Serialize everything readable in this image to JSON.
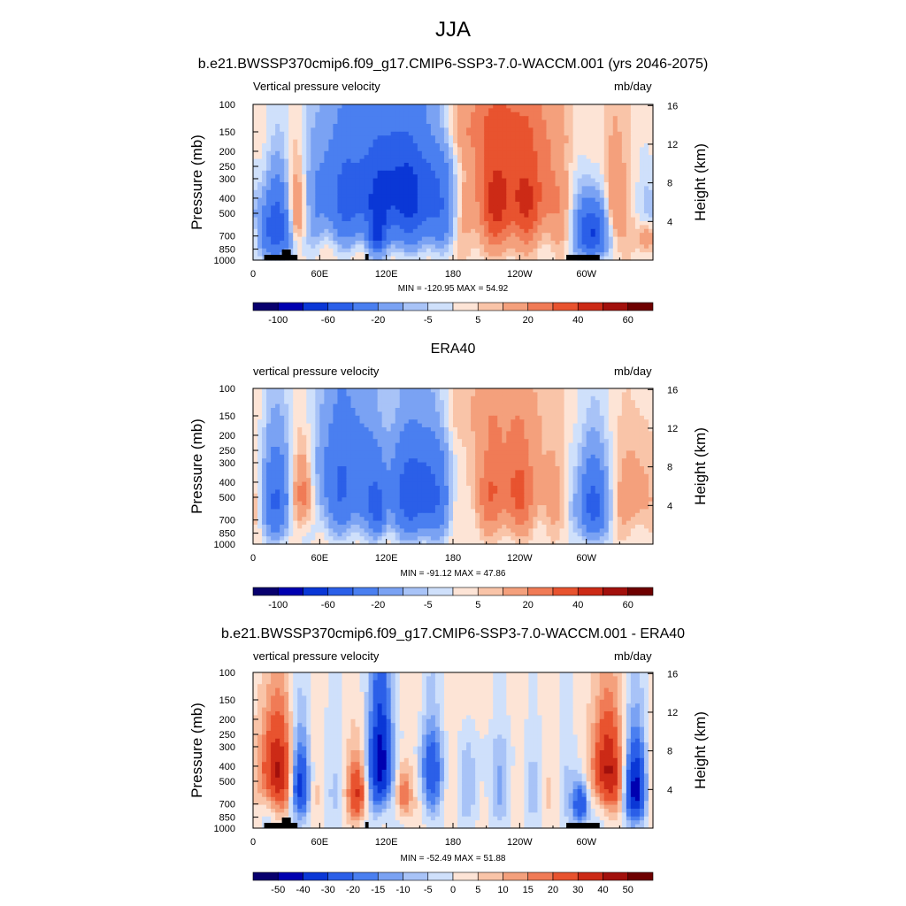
{
  "figure": {
    "title": "JJA",
    "run_title": "b.e21.BWSSP370cmip6.f09_g17.CMIP6-SSP3-7.0-WACCM.001 (yrs 2046-2075)"
  },
  "colors": {
    "mask": "#000000",
    "abs_palette": [
      "#08006e",
      "#0000b0",
      "#0a37d6",
      "#2b5fe8",
      "#4a7ff0",
      "#7aa2f3",
      "#a8c3f7",
      "#cfe0fb",
      "#fde4d6",
      "#f9c4a8",
      "#f4a07c",
      "#f07b56",
      "#e8532f",
      "#cc2a16",
      "#a2100c",
      "#6e0000"
    ],
    "diff_palette": [
      "#08006e",
      "#0000b0",
      "#0a37d6",
      "#2b5fe8",
      "#4a7ff0",
      "#7aa2f3",
      "#a8c3f7",
      "#cfe0fb",
      "#fde4d6",
      "#f9c4a8",
      "#f4a07c",
      "#f07b56",
      "#e8532f",
      "#cc2a16",
      "#a2100c",
      "#6e0000"
    ]
  },
  "chart_data": [
    {
      "type": "heatmap",
      "panel_title": "",
      "var_label": "Vertical pressure velocity",
      "unit_label": "mb/day",
      "ylabel": "Pressure (mb)",
      "ylabel_right": "Height (km)",
      "x_ticks": [
        "0",
        "60E",
        "120E",
        "180",
        "120W",
        "60W"
      ],
      "x_tick_lon": [
        0,
        60,
        120,
        180,
        240,
        300
      ],
      "xlim": [
        0,
        360
      ],
      "y_ticks": [
        "100",
        "150",
        "200",
        "250",
        "300",
        "400",
        "500",
        "700",
        "850",
        "1000"
      ],
      "y_tick_values": [
        100,
        150,
        200,
        250,
        300,
        400,
        500,
        700,
        850,
        1000
      ],
      "ylim": [
        1000,
        100
      ],
      "y_right_ticks": [
        "16",
        "12",
        "8",
        "4"
      ],
      "y_right_values": [
        16,
        12,
        8,
        4
      ],
      "minmax_text": "MIN = -120.95  MAX =  54.92",
      "min": -120.95,
      "max": 54.92,
      "colorbar_labels": [
        "-100",
        "-60",
        "-20",
        "-5",
        "5",
        "20",
        "40",
        "60"
      ],
      "colorbar_label_slots": [
        1,
        3,
        5,
        7,
        9,
        11,
        13,
        15
      ],
      "show_mask": true,
      "field": [
        {
          "lon": 18,
          "p": 620,
          "a": -55,
          "wl": 14,
          "wp": 360
        },
        {
          "lon": 40,
          "p": 480,
          "a": 32,
          "wl": 7,
          "wp": 300
        },
        {
          "lon": 8,
          "p": 520,
          "a": 8,
          "wl": 8,
          "wp": 400
        },
        {
          "lon": 90,
          "p": 380,
          "a": -48,
          "wl": 28,
          "wp": 380
        },
        {
          "lon": 135,
          "p": 360,
          "a": -55,
          "wl": 20,
          "wp": 420
        },
        {
          "lon": 165,
          "p": 440,
          "a": -30,
          "wl": 14,
          "wp": 380
        },
        {
          "lon": 112,
          "p": 700,
          "a": -40,
          "wl": 5,
          "wp": 230
        },
        {
          "lon": 225,
          "p": 400,
          "a": 40,
          "wl": 22,
          "wp": 420
        },
        {
          "lon": 260,
          "p": 380,
          "a": 18,
          "wl": 14,
          "wp": 340
        },
        {
          "lon": 305,
          "p": 660,
          "a": -70,
          "wl": 9,
          "wp": 300
        },
        {
          "lon": 325,
          "p": 440,
          "a": 22,
          "wl": 6,
          "wp": 340
        },
        {
          "lon": 355,
          "p": 720,
          "a": 30,
          "wl": 6,
          "wp": 200
        },
        {
          "lon": 180,
          "p": 140,
          "a": 10,
          "wl": 60,
          "wp": 80
        }
      ],
      "base": 3
    },
    {
      "type": "heatmap",
      "panel_title": "ERA40",
      "var_label": "vertical pressure velocity",
      "unit_label": "mb/day",
      "ylabel": "Pressure (mb)",
      "ylabel_right": "Height (km)",
      "x_ticks": [
        "0",
        "60E",
        "120E",
        "180",
        "120W",
        "60W"
      ],
      "x_tick_lon": [
        0,
        60,
        120,
        180,
        240,
        300
      ],
      "xlim": [
        0,
        360
      ],
      "y_ticks": [
        "100",
        "150",
        "200",
        "250",
        "300",
        "400",
        "500",
        "700",
        "850",
        "1000"
      ],
      "y_tick_values": [
        100,
        150,
        200,
        250,
        300,
        400,
        500,
        700,
        850,
        1000
      ],
      "ylim": [
        1000,
        100
      ],
      "y_right_ticks": [
        "16",
        "12",
        "8",
        "4"
      ],
      "y_right_values": [
        16,
        12,
        8,
        4
      ],
      "minmax_text": "MIN = -91.12  MAX =  47.86",
      "min": -91.12,
      "max": 47.86,
      "colorbar_labels": [
        "-100",
        "-60",
        "-20",
        "-5",
        "5",
        "20",
        "40",
        "60"
      ],
      "colorbar_label_slots": [
        1,
        3,
        5,
        7,
        9,
        11,
        13,
        15
      ],
      "show_mask": false,
      "field": [
        {
          "lon": 22,
          "p": 520,
          "a": -40,
          "wl": 10,
          "wp": 380
        },
        {
          "lon": 45,
          "p": 480,
          "a": 36,
          "wl": 7,
          "wp": 300
        },
        {
          "lon": 85,
          "p": 400,
          "a": -42,
          "wl": 22,
          "wp": 420
        },
        {
          "lon": 150,
          "p": 480,
          "a": -58,
          "wl": 18,
          "wp": 400
        },
        {
          "lon": 112,
          "p": 620,
          "a": -30,
          "wl": 5,
          "wp": 260
        },
        {
          "lon": 230,
          "p": 450,
          "a": 30,
          "wl": 24,
          "wp": 380
        },
        {
          "lon": 305,
          "p": 560,
          "a": -55,
          "wl": 8,
          "wp": 360
        },
        {
          "lon": 345,
          "p": 480,
          "a": 18,
          "wl": 9,
          "wp": 320
        },
        {
          "lon": 180,
          "p": 140,
          "a": 6,
          "wl": 60,
          "wp": 80
        }
      ],
      "base": 2
    },
    {
      "type": "heatmap",
      "panel_title": "b.e21.BWSSP370cmip6.f09_g17.CMIP6-SSP3-7.0-WACCM.001 - ERA40",
      "var_label": "vertical pressure velocity",
      "unit_label": "mb/day",
      "ylabel": "Pressure (mb)",
      "ylabel_right": "Height (km)",
      "x_ticks": [
        "0",
        "60E",
        "120E",
        "180",
        "120W",
        "60W"
      ],
      "x_tick_lon": [
        0,
        60,
        120,
        180,
        240,
        300
      ],
      "xlim": [
        0,
        360
      ],
      "y_ticks": [
        "100",
        "150",
        "200",
        "250",
        "300",
        "400",
        "500",
        "700",
        "850",
        "1000"
      ],
      "y_tick_values": [
        100,
        150,
        200,
        250,
        300,
        400,
        500,
        700,
        850,
        1000
      ],
      "ylim": [
        1000,
        100
      ],
      "y_right_ticks": [
        "16",
        "12",
        "8",
        "4"
      ],
      "y_right_values": [
        16,
        12,
        8,
        4
      ],
      "minmax_text": "MIN = -52.49  MAX =  51.88",
      "min": -52.49,
      "max": 51.88,
      "colorbar_labels": [
        "-50",
        "-40",
        "-30",
        "-20",
        "-15",
        "-10",
        "-5",
        "0",
        "5",
        "10",
        "15",
        "20",
        "30",
        "40",
        "50"
      ],
      "colorbar_label_slots": [
        1,
        2,
        3,
        4,
        5,
        6,
        7,
        8,
        9,
        10,
        11,
        12,
        13,
        14,
        15
      ],
      "show_mask": true,
      "field": [
        {
          "lon": 20,
          "p": 420,
          "a": 40,
          "wl": 10,
          "wp": 320
        },
        {
          "lon": 42,
          "p": 520,
          "a": -30,
          "wl": 6,
          "wp": 320
        },
        {
          "lon": 95,
          "p": 600,
          "a": 30,
          "wl": 6,
          "wp": 300
        },
        {
          "lon": 115,
          "p": 380,
          "a": -50,
          "wl": 7,
          "wp": 380
        },
        {
          "lon": 135,
          "p": 600,
          "a": 25,
          "wl": 5,
          "wp": 260
        },
        {
          "lon": 160,
          "p": 420,
          "a": -22,
          "wl": 8,
          "wp": 320
        },
        {
          "lon": 215,
          "p": 500,
          "a": -6,
          "wl": 20,
          "wp": 400
        },
        {
          "lon": 295,
          "p": 700,
          "a": -35,
          "wl": 5,
          "wp": 260
        },
        {
          "lon": 318,
          "p": 420,
          "a": 42,
          "wl": 9,
          "wp": 320
        },
        {
          "lon": 345,
          "p": 560,
          "a": -40,
          "wl": 7,
          "wp": 360
        },
        {
          "lon": 180,
          "p": 160,
          "a": 4,
          "wl": 50,
          "wp": 100
        }
      ],
      "base": 0
    }
  ]
}
